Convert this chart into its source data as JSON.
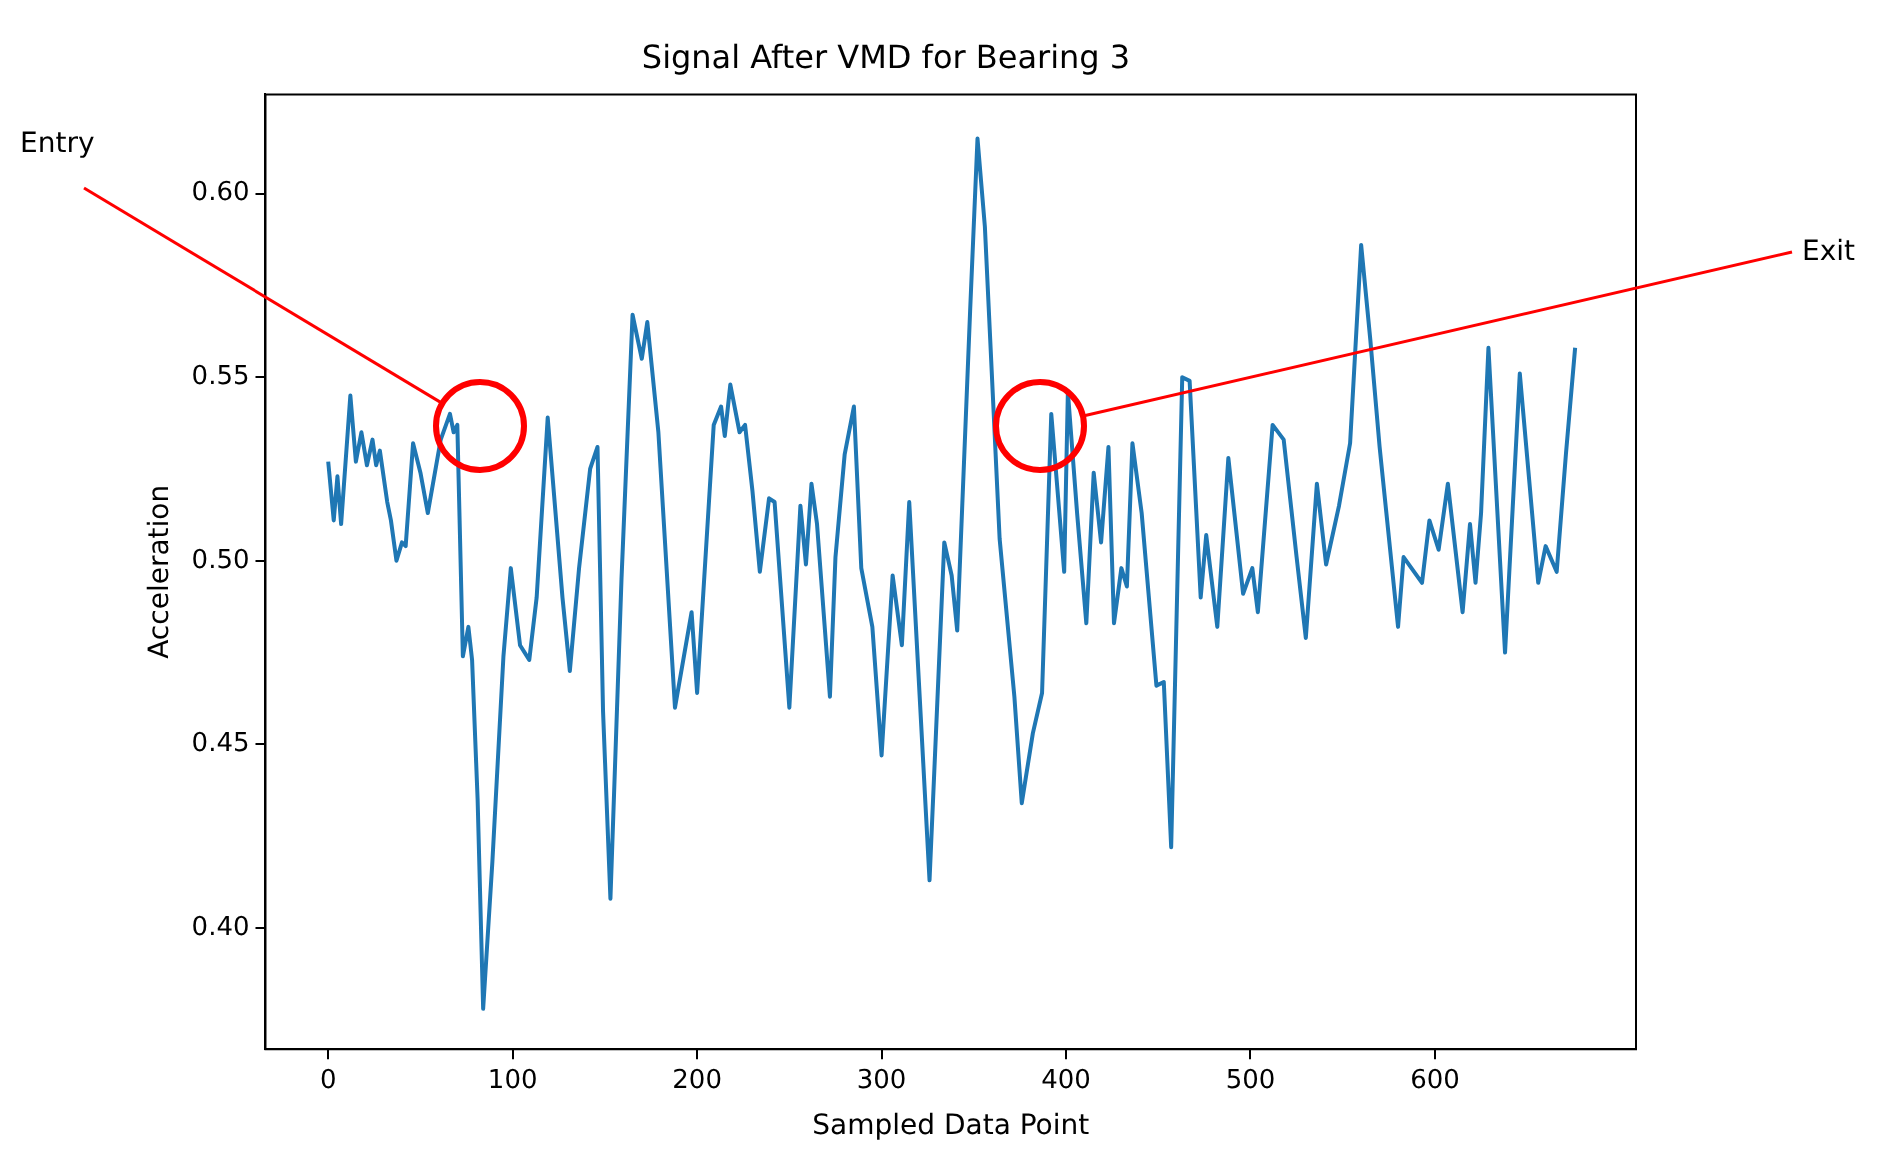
{
  "chart_data": {
    "type": "line",
    "title": "Signal After VMD for Bearing 3",
    "xlabel": "Sampled Data Point",
    "ylabel": "Acceleration",
    "xlim": [
      -34,
      709
    ],
    "xticks": [
      0,
      100,
      200,
      300,
      400,
      500,
      600
    ],
    "ylim": [
      0.367,
      0.627
    ],
    "yticks": [
      {
        "value": 0.4,
        "label": "0.40"
      },
      0.45,
      {
        "value": 0.5,
        "label": "0.50"
      },
      0.55,
      {
        "value": 0.6,
        "label": "0.60"
      }
    ],
    "grid": false,
    "legend": false,
    "marker": "none",
    "line_style": "solid",
    "annotations": [
      "Entry",
      "Exit"
    ],
    "series": [
      {
        "color": "#1f77b4",
        "x": [
          0,
          3,
          5,
          7,
          12,
          15,
          18,
          21,
          24,
          26,
          28,
          32,
          34,
          37,
          40,
          42,
          46,
          50,
          54,
          61,
          66,
          68,
          70,
          73,
          76,
          78,
          81,
          84,
          89,
          95,
          99,
          104,
          109,
          113,
          119,
          127,
          131,
          136,
          142,
          146,
          149,
          153,
          159,
          165,
          170,
          173,
          179,
          188,
          197,
          200,
          209,
          213,
          215,
          218,
          223,
          226,
          230,
          234,
          239,
          242,
          250,
          256,
          259,
          262,
          265,
          272,
          275,
          280,
          285,
          289,
          295,
          300,
          306,
          311,
          315,
          326,
          334,
          338,
          341,
          348,
          352,
          356,
          364,
          372,
          376,
          382,
          387,
          392,
          399,
          401,
          406,
          411,
          415,
          419,
          423,
          426,
          430,
          433,
          436,
          441,
          449,
          453,
          457,
          463,
          467,
          473,
          476,
          482,
          488,
          496,
          501,
          504,
          512,
          518,
          525,
          530,
          536,
          541,
          548,
          554,
          560,
          565,
          570,
          580,
          583,
          593,
          597,
          602,
          607,
          615,
          619,
          622,
          625,
          629,
          638,
          646,
          656,
          660,
          666,
          671,
          676
        ],
        "values": [
          0.527,
          0.511,
          0.523,
          0.51,
          0.545,
          0.527,
          0.535,
          0.526,
          0.533,
          0.526,
          0.53,
          0.516,
          0.511,
          0.5,
          0.505,
          0.504,
          0.532,
          0.524,
          0.513,
          0.533,
          0.54,
          0.535,
          0.537,
          0.474,
          0.482,
          0.473,
          0.435,
          0.378,
          0.418,
          0.474,
          0.498,
          0.477,
          0.473,
          0.49,
          0.539,
          0.49,
          0.47,
          0.498,
          0.525,
          0.531,
          0.459,
          0.408,
          0.495,
          0.567,
          0.555,
          0.565,
          0.535,
          0.46,
          0.486,
          0.464,
          0.537,
          0.542,
          0.534,
          0.548,
          0.535,
          0.537,
          0.519,
          0.497,
          0.517,
          0.516,
          0.46,
          0.515,
          0.499,
          0.521,
          0.51,
          0.463,
          0.501,
          0.529,
          0.542,
          0.498,
          0.482,
          0.447,
          0.496,
          0.477,
          0.516,
          0.413,
          0.505,
          0.496,
          0.481,
          0.568,
          0.615,
          0.591,
          0.506,
          0.463,
          0.434,
          0.453,
          0.464,
          0.54,
          0.497,
          0.546,
          0.513,
          0.483,
          0.524,
          0.505,
          0.531,
          0.483,
          0.498,
          0.493,
          0.532,
          0.513,
          0.466,
          0.467,
          0.422,
          0.55,
          0.549,
          0.49,
          0.507,
          0.482,
          0.528,
          0.491,
          0.498,
          0.486,
          0.537,
          0.533,
          0.501,
          0.479,
          0.521,
          0.499,
          0.515,
          0.532,
          0.586,
          0.56,
          0.531,
          0.482,
          0.501,
          0.494,
          0.511,
          0.503,
          0.521,
          0.486,
          0.51,
          0.494,
          0.513,
          0.558,
          0.475,
          0.551,
          0.494,
          0.504,
          0.497,
          0.529,
          0.558
        ]
      }
    ]
  }
}
